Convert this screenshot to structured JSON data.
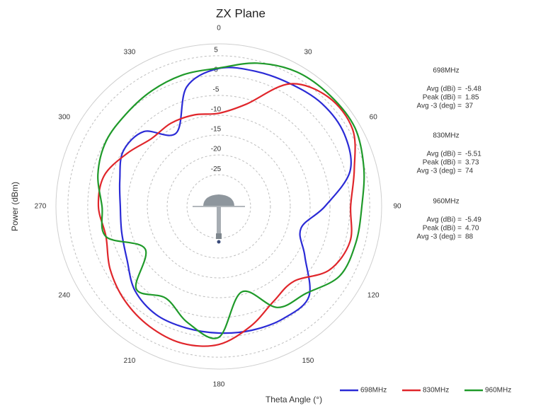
{
  "chart_data": {
    "type": "polar",
    "title": "ZX Plane",
    "x_label": "Theta Angle (°)",
    "y_label": "Power (dBm)",
    "theta": [
      0,
      15,
      30,
      45,
      60,
      75,
      90,
      105,
      120,
      135,
      150,
      165,
      180,
      195,
      210,
      225,
      240,
      255,
      270,
      285,
      300,
      315,
      330,
      345
    ],
    "rlim": [
      -33,
      8
    ],
    "rticks": [
      5,
      0,
      -5,
      -10,
      -15,
      -20,
      -25
    ],
    "thetaticks": [
      0,
      30,
      60,
      90,
      120,
      150,
      180,
      210,
      240,
      270,
      300,
      330
    ],
    "grid": true,
    "legend": "bottom-right",
    "series": [
      {
        "name": "698MHz",
        "color": "#2b2bd6",
        "values": [
          1.8,
          2.3,
          2.8,
          3.7,
          3.5,
          1.2,
          -6.3,
          -11.6,
          -8.0,
          -0.9,
          -0.4,
          -0.7,
          -1.1,
          -1.3,
          -1.5,
          -3.1,
          -6.3,
          -7.7,
          -8.2,
          -7.2,
          -5.2,
          -6.3,
          -11.6,
          -1.8
        ]
      },
      {
        "name": "830MHz",
        "color": "#e0262b",
        "values": [
          -9.5,
          -6.3,
          2.7,
          6.0,
          5.9,
          2.3,
          0.2,
          1.2,
          -0.9,
          -6.3,
          -5.4,
          -1.8,
          1.8,
          2.7,
          1.9,
          0.5,
          -1.4,
          -3.6,
          -2.7,
          -3.1,
          -6.3,
          -8.9,
          -8.8,
          -9.1
        ]
      },
      {
        "name": "960MHz",
        "color": "#1f9a2a",
        "values": [
          1.9,
          4.4,
          6.2,
          6.6,
          6.6,
          4.8,
          3.0,
          2.7,
          2.1,
          -2.0,
          -3.6,
          -10.7,
          0.0,
          -2.7,
          -6.3,
          -3.6,
          -11.6,
          -3.6,
          -3.6,
          -1.5,
          -0.2,
          0.0,
          0.7,
          1.4
        ]
      }
    ],
    "stats_labels": [
      "Avg (dBi) =",
      "Peak (dBi) =",
      "Avg -3 (deg) ="
    ],
    "stats": [
      [
        "-5.48",
        "1.85",
        "37"
      ],
      [
        "-5.51",
        "3.73",
        "74"
      ],
      [
        "-5.49",
        "4.70",
        "88"
      ]
    ]
  }
}
